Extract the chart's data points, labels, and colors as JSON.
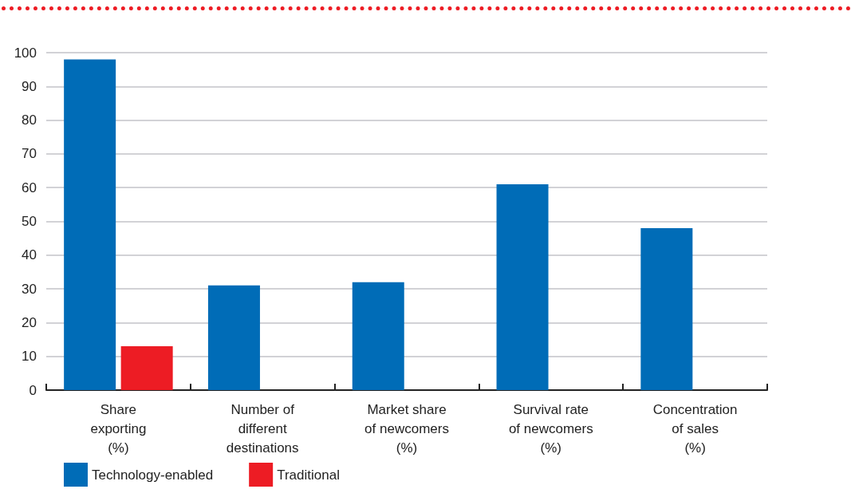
{
  "chart_data": {
    "type": "bar",
    "categories": [
      "Share\nexporting\n(%)",
      "Number of\ndifferent\ndestinations",
      "Market share\nof newcomers\n(%)",
      "Survival rate\nof newcomers\n(%)",
      "Concentration\nof sales\n(%)"
    ],
    "series": [
      {
        "name": "Technology-enabled",
        "color": "#006cb7",
        "values": [
          98,
          31,
          32,
          61,
          48
        ]
      },
      {
        "name": "Traditional",
        "color": "#ed1c24",
        "values": [
          13,
          null,
          null,
          null,
          null
        ]
      }
    ],
    "ylim": [
      0,
      100
    ],
    "yticks": [
      0,
      10,
      20,
      30,
      40,
      50,
      60,
      70,
      80,
      90,
      100
    ],
    "grid": "y",
    "legend": "bottom left"
  }
}
